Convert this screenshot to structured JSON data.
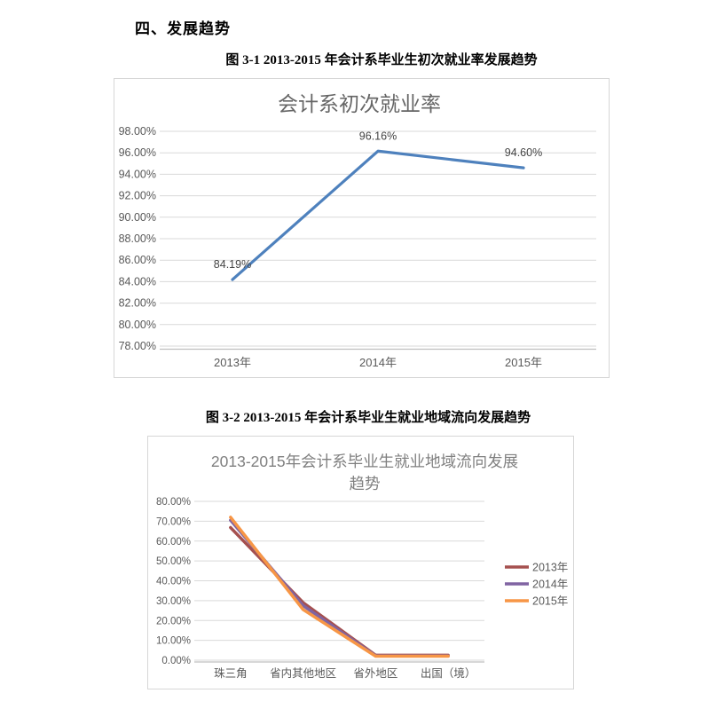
{
  "document": {
    "section_heading": "四、发展趋势",
    "figure1_caption": "图 3-1 2013-2015 年会计系毕业生初次就业率发展趋势",
    "figure2_caption": "图 3-2 2013-2015 年会计系毕业生就业地域流向发展趋势"
  },
  "colors": {
    "series_blue": "#4E81BD",
    "series_red": "#A5504F",
    "series_purple": "#8064A2",
    "series_orange": "#F79646",
    "gridline": "#D9D9D9",
    "axis_line": "#BFBFBF",
    "axis_text": "#595959",
    "chart_title": "#666666",
    "data_label": "#444444"
  },
  "chart_data": [
    {
      "type": "line",
      "title": "会计系初次就业率",
      "title_lines": [
        "会计系初次就业率"
      ],
      "categories": [
        "2013年",
        "2014年",
        "2015年"
      ],
      "series": [
        {
          "name": "会计系初次就业率",
          "color": "#4E81BD",
          "values": [
            84.19,
            96.16,
            94.6
          ]
        }
      ],
      "data_labels": [
        "84.19%",
        "96.16%",
        "94.60%"
      ],
      "ylim": [
        78,
        98
      ],
      "ystep": 2,
      "ytick_labels": [
        "98.00%",
        "96.00%",
        "94.00%",
        "92.00%",
        "90.00%",
        "88.00%",
        "86.00%",
        "84.00%",
        "82.00%",
        "80.00%",
        "78.00%"
      ],
      "grid": true,
      "legend": "none"
    },
    {
      "type": "line",
      "title": "2013-2015年会计系毕业生就业地域流向发展趋势",
      "title_lines": [
        "2013-2015年会计系毕业生就业地域流向发展",
        "趋势"
      ],
      "categories": [
        "珠三角",
        "省内其他地区",
        "省外地区",
        "出国（境）"
      ],
      "series": [
        {
          "name": "2013年",
          "color": "#A5504F",
          "values": [
            66.8,
            29.0,
            2.5,
            2.5
          ]
        },
        {
          "name": "2014年",
          "color": "#8064A2",
          "values": [
            70.5,
            27.5,
            2.2,
            2.2
          ]
        },
        {
          "name": "2015年",
          "color": "#F79646",
          "values": [
            72.0,
            25.5,
            2.0,
            2.0
          ]
        }
      ],
      "ylim": [
        0,
        80
      ],
      "ystep": 10,
      "ytick_labels": [
        "80.00%",
        "70.00%",
        "60.00%",
        "50.00%",
        "40.00%",
        "30.00%",
        "20.00%",
        "10.00%",
        "0.00%"
      ],
      "grid": true,
      "legend": "right"
    }
  ]
}
